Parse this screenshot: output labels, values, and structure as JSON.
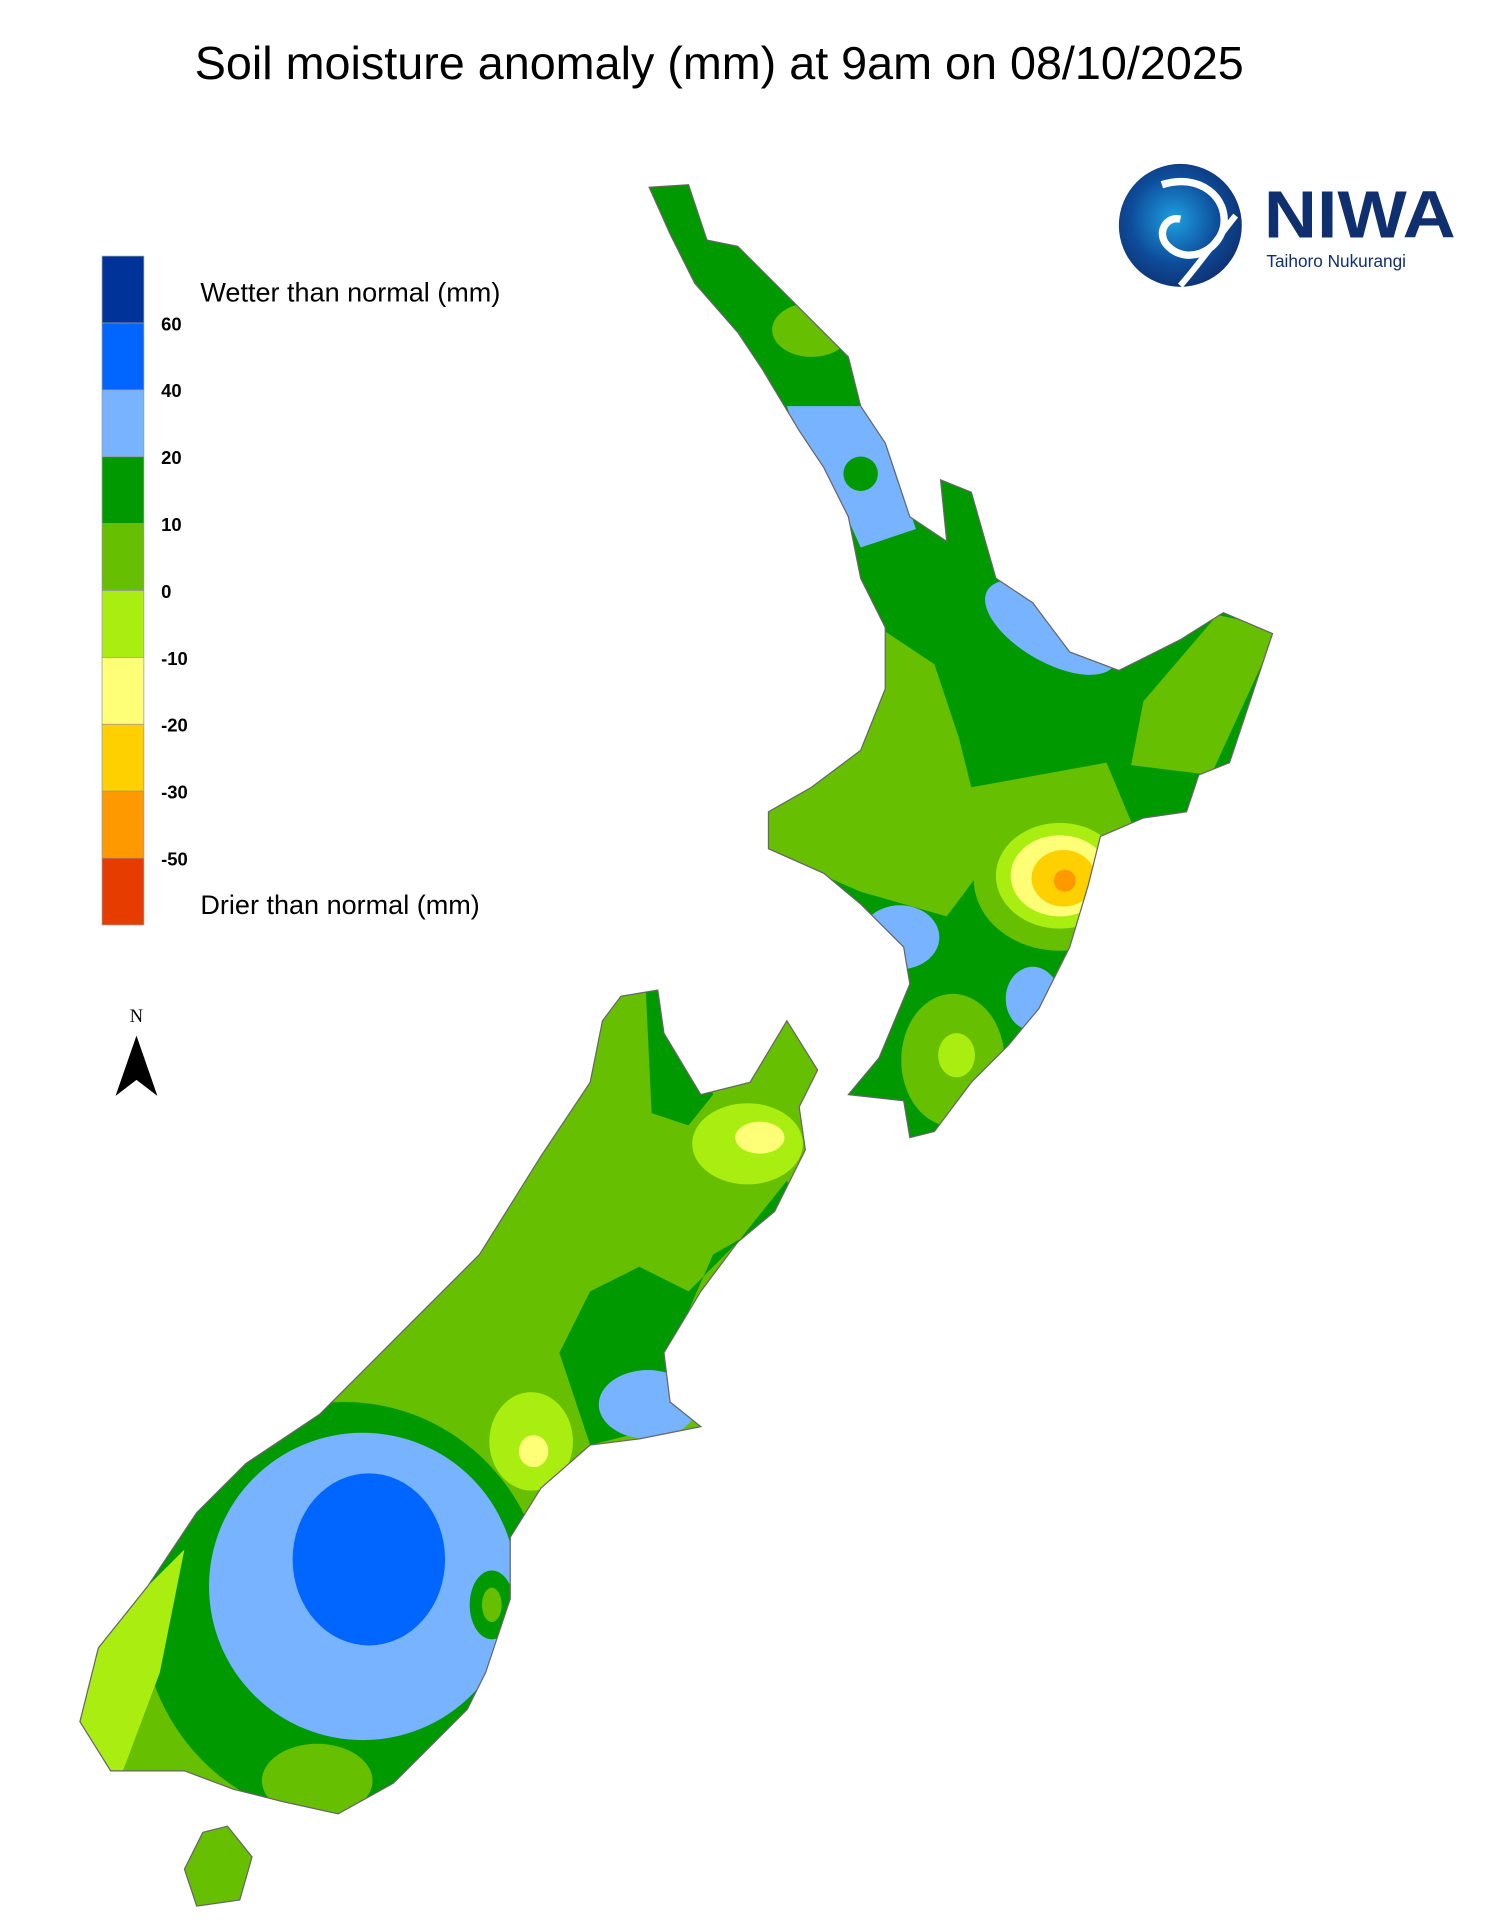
{
  "title": "Soil moisture anomaly (mm) at 9am on 08/10/2025",
  "legend": {
    "wetter_label": "Wetter than normal (mm)",
    "drier_label": "Drier than normal (mm)",
    "ticks": [
      "60",
      "40",
      "20",
      "10",
      "0",
      "-10",
      "-20",
      "-30",
      "-50"
    ],
    "colors": [
      "#003399",
      "#0066ff",
      "#77b3ff",
      "#009900",
      "#66bf00",
      "#aaee11",
      "#ffff77",
      "#ffd000",
      "#ff9900",
      "#e63c00"
    ]
  },
  "north_arrow": {
    "label": "N"
  },
  "logo": {
    "name": "NIWA",
    "subtitle": "Taihoro Nukurangi",
    "color": "#0f2f6e"
  },
  "map": {
    "land_outline_color": "#666666"
  }
}
